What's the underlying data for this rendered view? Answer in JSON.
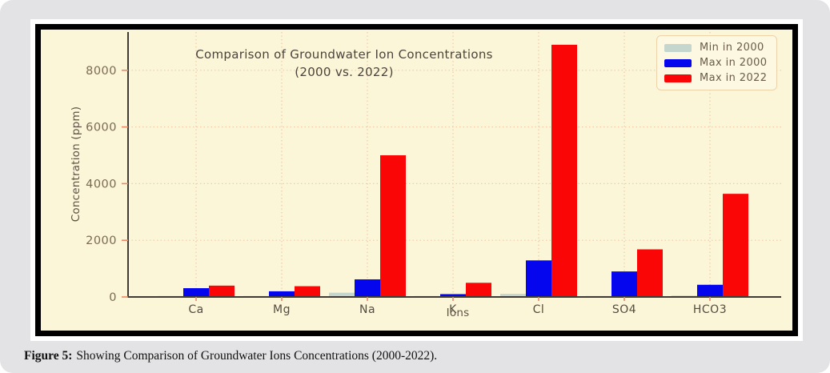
{
  "figure": {
    "caption_label": "Figure 5:",
    "caption_text": "Showing Comparison of Groundwater Ions Concentrations (2000-2022)."
  },
  "chart_data": {
    "type": "bar",
    "title_line1": "Comparison of Groundwater Ion Concentrations",
    "title_line2": "(2000 vs. 2022)",
    "xlabel": "Ions",
    "ylabel": "Concentration (ppm)",
    "categories": [
      "Ca",
      "Mg",
      "Na",
      "K",
      "Cl",
      "SO4",
      "HCO3"
    ],
    "series": [
      {
        "name": "Min in 2000",
        "color": "#c5d6ce",
        "values": [
          20,
          15,
          150,
          10,
          110,
          20,
          50
        ]
      },
      {
        "name": "Max in 2000",
        "color": "#0505ee",
        "values": [
          310,
          200,
          620,
          100,
          1290,
          900,
          430
        ]
      },
      {
        "name": "Max in 2022",
        "color": "#fa0606",
        "values": [
          400,
          380,
          5000,
          500,
          8900,
          1680,
          3640
        ]
      }
    ],
    "yticks": [
      0,
      2000,
      4000,
      6000,
      8000
    ],
    "ylim": [
      0,
      9350
    ],
    "grid": "dotted",
    "legend_position": "upper right",
    "colors": {
      "page_background": "#e3e3e5",
      "plot_background": "#fcf6d9",
      "grid": "#f3c9a8",
      "axis": "#3f3b36",
      "tick_mark": "#ef8866",
      "tick_text": "#7b6a53",
      "category_text": "#554c42",
      "title_text": "#4b443c",
      "frame": "#000000"
    }
  }
}
